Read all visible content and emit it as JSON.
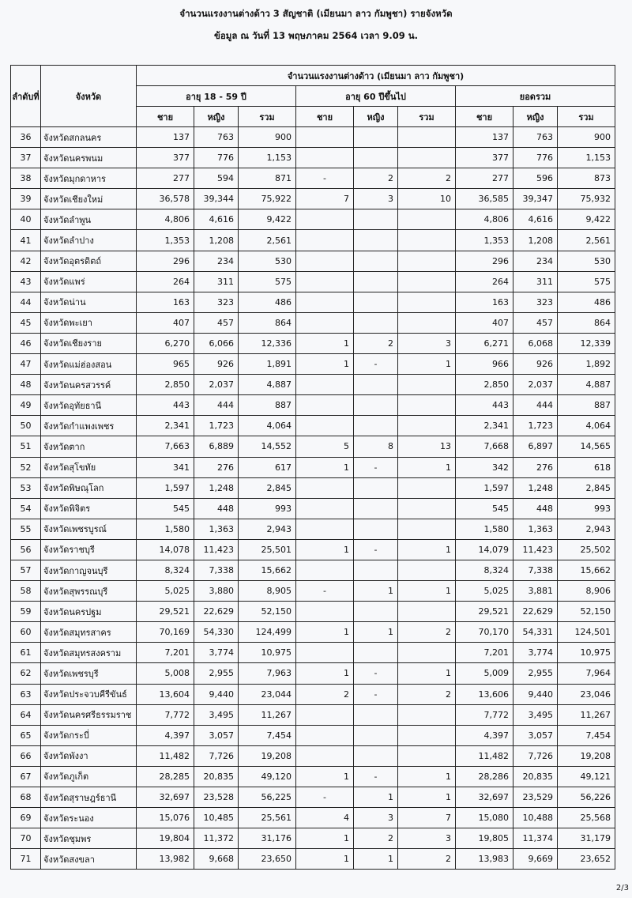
{
  "title": "จำนวนแรงงานต่างด้าว 3 สัญชาติ (เมียนมา ลาว กัมพูชา) รายจังหวัด",
  "subtitle": "ข้อมูล ณ วันที่ 13 พฤษภาคม 2564 เวลา 9.09 น.",
  "table": {
    "col_no": "ลำดับที่",
    "col_province": "จังหวัด",
    "group_header": "จำนวนแรงงานต่างด้าว (เมียนมา ลาว กัมพูชา)",
    "age_groups": [
      "อายุ 18 - 59 ปี",
      "อายุ 60 ปีขึ้นไป",
      "ยอดรวม"
    ],
    "sub_headers": [
      "ชาย",
      "หญิง",
      "รวม"
    ],
    "rows": [
      [
        "36",
        "จังหวัดสกลนคร",
        "137",
        "763",
        "900",
        "",
        "",
        "",
        "137",
        "763",
        "900"
      ],
      [
        "37",
        "จังหวัดนครพนม",
        "377",
        "776",
        "1,153",
        "",
        "",
        "",
        "377",
        "776",
        "1,153"
      ],
      [
        "38",
        "จังหวัดมุกดาหาร",
        "277",
        "594",
        "871",
        "-",
        "2",
        "2",
        "277",
        "596",
        "873"
      ],
      [
        "39",
        "จังหวัดเชียงใหม่",
        "36,578",
        "39,344",
        "75,922",
        "7",
        "3",
        "10",
        "36,585",
        "39,347",
        "75,932"
      ],
      [
        "40",
        "จังหวัดลำพูน",
        "4,806",
        "4,616",
        "9,422",
        "",
        "",
        "",
        "4,806",
        "4,616",
        "9,422"
      ],
      [
        "41",
        "จังหวัดลำปาง",
        "1,353",
        "1,208",
        "2,561",
        "",
        "",
        "",
        "1,353",
        "1,208",
        "2,561"
      ],
      [
        "42",
        "จังหวัดอุตรดิตถ์",
        "296",
        "234",
        "530",
        "",
        "",
        "",
        "296",
        "234",
        "530"
      ],
      [
        "43",
        "จังหวัดแพร่",
        "264",
        "311",
        "575",
        "",
        "",
        "",
        "264",
        "311",
        "575"
      ],
      [
        "44",
        "จังหวัดน่าน",
        "163",
        "323",
        "486",
        "",
        "",
        "",
        "163",
        "323",
        "486"
      ],
      [
        "45",
        "จังหวัดพะเยา",
        "407",
        "457",
        "864",
        "",
        "",
        "",
        "407",
        "457",
        "864"
      ],
      [
        "46",
        "จังหวัดเชียงราย",
        "6,270",
        "6,066",
        "12,336",
        "1",
        "2",
        "3",
        "6,271",
        "6,068",
        "12,339"
      ],
      [
        "47",
        "จังหวัดแม่ฮ่องสอน",
        "965",
        "926",
        "1,891",
        "1",
        "-",
        "1",
        "966",
        "926",
        "1,892"
      ],
      [
        "48",
        "จังหวัดนครสวรรค์",
        "2,850",
        "2,037",
        "4,887",
        "",
        "",
        "",
        "2,850",
        "2,037",
        "4,887"
      ],
      [
        "49",
        "จังหวัดอุทัยธานี",
        "443",
        "444",
        "887",
        "",
        "",
        "",
        "443",
        "444",
        "887"
      ],
      [
        "50",
        "จังหวัดกำแพงเพชร",
        "2,341",
        "1,723",
        "4,064",
        "",
        "",
        "",
        "2,341",
        "1,723",
        "4,064"
      ],
      [
        "51",
        "จังหวัดตาก",
        "7,663",
        "6,889",
        "14,552",
        "5",
        "8",
        "13",
        "7,668",
        "6,897",
        "14,565"
      ],
      [
        "52",
        "จังหวัดสุโขทัย",
        "341",
        "276",
        "617",
        "1",
        "-",
        "1",
        "342",
        "276",
        "618"
      ],
      [
        "53",
        "จังหวัดพิษณุโลก",
        "1,597",
        "1,248",
        "2,845",
        "",
        "",
        "",
        "1,597",
        "1,248",
        "2,845"
      ],
      [
        "54",
        "จังหวัดพิจิตร",
        "545",
        "448",
        "993",
        "",
        "",
        "",
        "545",
        "448",
        "993"
      ],
      [
        "55",
        "จังหวัดเพชรบูรณ์",
        "1,580",
        "1,363",
        "2,943",
        "",
        "",
        "",
        "1,580",
        "1,363",
        "2,943"
      ],
      [
        "56",
        "จังหวัดราชบุรี",
        "14,078",
        "11,423",
        "25,501",
        "1",
        "-",
        "1",
        "14,079",
        "11,423",
        "25,502"
      ],
      [
        "57",
        "จังหวัดกาญจนบุรี",
        "8,324",
        "7,338",
        "15,662",
        "",
        "",
        "",
        "8,324",
        "7,338",
        "15,662"
      ],
      [
        "58",
        "จังหวัดสุพรรณบุรี",
        "5,025",
        "3,880",
        "8,905",
        "-",
        "1",
        "1",
        "5,025",
        "3,881",
        "8,906"
      ],
      [
        "59",
        "จังหวัดนครปฐม",
        "29,521",
        "22,629",
        "52,150",
        "",
        "",
        "",
        "29,521",
        "22,629",
        "52,150"
      ],
      [
        "60",
        "จังหวัดสมุทรสาคร",
        "70,169",
        "54,330",
        "124,499",
        "1",
        "1",
        "2",
        "70,170",
        "54,331",
        "124,501"
      ],
      [
        "61",
        "จังหวัดสมุทรสงคราม",
        "7,201",
        "3,774",
        "10,975",
        "",
        "",
        "",
        "7,201",
        "3,774",
        "10,975"
      ],
      [
        "62",
        "จังหวัดเพชรบุรี",
        "5,008",
        "2,955",
        "7,963",
        "1",
        "-",
        "1",
        "5,009",
        "2,955",
        "7,964"
      ],
      [
        "63",
        "จังหวัดประจวบคีรีขันธ์",
        "13,604",
        "9,440",
        "23,044",
        "2",
        "-",
        "2",
        "13,606",
        "9,440",
        "23,046"
      ],
      [
        "64",
        "จังหวัดนครศรีธรรมราช",
        "7,772",
        "3,495",
        "11,267",
        "",
        "",
        "",
        "7,772",
        "3,495",
        "11,267"
      ],
      [
        "65",
        "จังหวัดกระบี่",
        "4,397",
        "3,057",
        "7,454",
        "",
        "",
        "",
        "4,397",
        "3,057",
        "7,454"
      ],
      [
        "66",
        "จังหวัดพังงา",
        "11,482",
        "7,726",
        "19,208",
        "",
        "",
        "",
        "11,482",
        "7,726",
        "19,208"
      ],
      [
        "67",
        "จังหวัดภูเก็ต",
        "28,285",
        "20,835",
        "49,120",
        "1",
        "-",
        "1",
        "28,286",
        "20,835",
        "49,121"
      ],
      [
        "68",
        "จังหวัดสุราษฎร์ธานี",
        "32,697",
        "23,528",
        "56,225",
        "-",
        "1",
        "1",
        "32,697",
        "23,529",
        "56,226"
      ],
      [
        "69",
        "จังหวัดระนอง",
        "15,076",
        "10,485",
        "25,561",
        "4",
        "3",
        "7",
        "15,080",
        "10,488",
        "25,568"
      ],
      [
        "70",
        "จังหวัดชุมพร",
        "19,804",
        "11,372",
        "31,176",
        "1",
        "2",
        "3",
        "19,805",
        "11,374",
        "31,179"
      ],
      [
        "71",
        "จังหวัดสงขลา",
        "13,982",
        "9,668",
        "23,650",
        "1",
        "1",
        "2",
        "13,983",
        "9,669",
        "23,652"
      ]
    ]
  },
  "page_number": "2/3"
}
